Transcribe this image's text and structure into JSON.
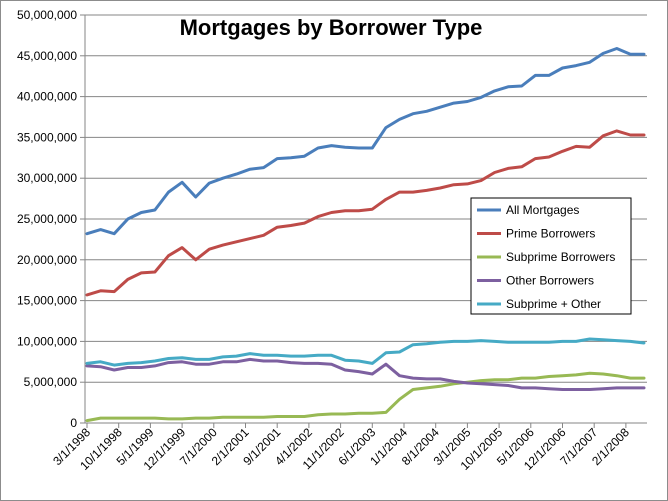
{
  "chart_data": {
    "type": "line",
    "title": "Mortgages by Borrower Type",
    "xlabel": "",
    "ylabel": "",
    "ylim": [
      0,
      50000000
    ],
    "yticks": [
      0,
      5000000,
      10000000,
      15000000,
      20000000,
      25000000,
      30000000,
      35000000,
      40000000,
      45000000,
      50000000
    ],
    "ytick_labels": [
      "0",
      "5,000,000",
      "10,000,000",
      "15,000,000",
      "20,000,000",
      "25,000,000",
      "30,000,000",
      "35,000,000",
      "40,000,000",
      "45,000,000",
      "50,000,000"
    ],
    "x": [
      "3/1/1998",
      "6/1/1998",
      "9/1/1998",
      "12/1/1998",
      "3/1/1999",
      "6/1/1999",
      "9/1/1999",
      "12/1/1999",
      "3/1/2000",
      "6/1/2000",
      "9/1/2000",
      "12/1/2000",
      "3/1/2001",
      "6/1/2001",
      "9/1/2001",
      "12/1/2001",
      "3/1/2002",
      "6/1/2002",
      "9/1/2002",
      "12/1/2002",
      "3/1/2003",
      "6/1/2003",
      "9/1/2003",
      "12/1/2003",
      "3/1/2004",
      "6/1/2004",
      "9/1/2004",
      "12/1/2004",
      "3/1/2005",
      "6/1/2005",
      "9/1/2005",
      "12/1/2005",
      "3/1/2006",
      "6/1/2006",
      "9/1/2006",
      "12/1/2006",
      "3/1/2007",
      "6/1/2007",
      "9/1/2007",
      "12/1/2007",
      "3/1/2008",
      "6/1/2008"
    ],
    "x_tick_labels": [
      "3/1/1998",
      "10/1/1998",
      "5/1/1999",
      "12/1/1999",
      "7/1/2000",
      "2/1/2001",
      "9/1/2001",
      "4/1/2002",
      "11/1/2002",
      "6/1/2003",
      "1/1/2004",
      "8/1/2004",
      "3/1/2005",
      "10/1/2005",
      "5/1/2006",
      "12/1/2006",
      "7/1/2007",
      "2/1/2008"
    ],
    "grid": "horizontal",
    "legend_position": "right",
    "series": [
      {
        "name": "All Mortgages",
        "color": "#4a7ebb",
        "values": [
          23200000,
          23700000,
          23200000,
          25000000,
          25800000,
          26100000,
          28300000,
          29500000,
          27700000,
          29400000,
          30000000,
          30500000,
          31100000,
          31300000,
          32400000,
          32500000,
          32700000,
          33700000,
          34000000,
          33800000,
          33700000,
          33700000,
          36200000,
          37200000,
          37900000,
          38200000,
          38700000,
          39200000,
          39400000,
          39900000,
          40700000,
          41200000,
          41300000,
          42600000,
          42600000,
          43500000,
          43800000,
          44200000,
          45300000,
          45900000,
          45200000,
          45200000
        ]
      },
      {
        "name": "Prime Borrowers",
        "color": "#be4b48",
        "values": [
          15700000,
          16200000,
          16100000,
          17600000,
          18400000,
          18500000,
          20500000,
          21500000,
          20000000,
          21300000,
          21800000,
          22200000,
          22600000,
          23000000,
          24000000,
          24200000,
          24500000,
          25300000,
          25800000,
          26000000,
          26000000,
          26200000,
          27400000,
          28300000,
          28300000,
          28500000,
          28800000,
          29200000,
          29300000,
          29700000,
          30700000,
          31200000,
          31400000,
          32400000,
          32600000,
          33300000,
          33900000,
          33800000,
          35200000,
          35800000,
          35300000,
          35300000
        ]
      },
      {
        "name": "Subprime Borrowers",
        "color": "#98b954",
        "values": [
          300000,
          600000,
          600000,
          600000,
          600000,
          600000,
          500000,
          500000,
          600000,
          600000,
          700000,
          700000,
          700000,
          700000,
          800000,
          800000,
          800000,
          1000000,
          1100000,
          1100000,
          1200000,
          1200000,
          1300000,
          2900000,
          4100000,
          4300000,
          4500000,
          4800000,
          5000000,
          5200000,
          5300000,
          5300000,
          5500000,
          5500000,
          5700000,
          5800000,
          5900000,
          6100000,
          6000000,
          5800000,
          5500000,
          5500000
        ]
      },
      {
        "name": "Other Borrowers",
        "color": "#7d60a0",
        "values": [
          7000000,
          6900000,
          6500000,
          6800000,
          6800000,
          7000000,
          7400000,
          7500000,
          7200000,
          7200000,
          7500000,
          7500000,
          7800000,
          7600000,
          7600000,
          7400000,
          7300000,
          7300000,
          7200000,
          6500000,
          6300000,
          6000000,
          7200000,
          5800000,
          5500000,
          5400000,
          5400000,
          5100000,
          4900000,
          4800000,
          4700000,
          4600000,
          4300000,
          4300000,
          4200000,
          4100000,
          4100000,
          4100000,
          4200000,
          4300000,
          4300000,
          4300000
        ]
      },
      {
        "name": "Subprime + Other",
        "color": "#46aac5",
        "values": [
          7300000,
          7500000,
          7100000,
          7300000,
          7400000,
          7600000,
          7900000,
          8000000,
          7800000,
          7800000,
          8100000,
          8200000,
          8500000,
          8300000,
          8300000,
          8200000,
          8200000,
          8300000,
          8300000,
          7700000,
          7600000,
          7300000,
          8600000,
          8700000,
          9600000,
          9700000,
          9900000,
          10000000,
          10000000,
          10100000,
          10000000,
          9900000,
          9900000,
          9900000,
          9900000,
          10000000,
          10000000,
          10300000,
          10200000,
          10100000,
          10000000,
          9800000
        ]
      }
    ]
  }
}
